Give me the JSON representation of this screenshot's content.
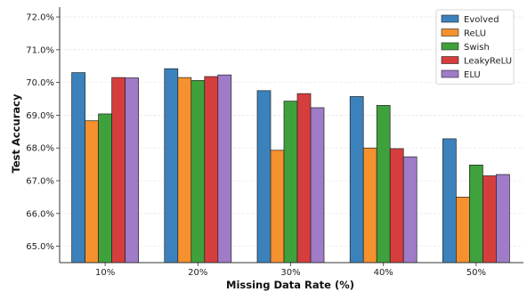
{
  "chart_data": {
    "type": "bar",
    "title": "",
    "xlabel": "Missing Data Rate (%)",
    "ylabel": "Test Accuracy",
    "categories": [
      "10%",
      "20%",
      "30%",
      "40%",
      "50%"
    ],
    "ylim": [
      64.5,
      72.3
    ],
    "yticks": [
      65.0,
      66.0,
      67.0,
      68.0,
      69.0,
      70.0,
      71.0,
      72.0
    ],
    "ytick_labels": [
      "65.0%",
      "66.0%",
      "67.0%",
      "68.0%",
      "69.0%",
      "70.0%",
      "71.0%",
      "72.0%"
    ],
    "grid": true,
    "legend_position": "top-right",
    "series": [
      {
        "name": "Evolved",
        "color": "#3b82bd",
        "values": [
          70.3,
          70.42,
          69.75,
          69.57,
          68.28
        ]
      },
      {
        "name": "ReLU",
        "color": "#f5912e",
        "values": [
          68.83,
          70.15,
          67.93,
          68.0,
          66.5
        ]
      },
      {
        "name": "Swish",
        "color": "#3fa13c",
        "values": [
          69.04,
          70.06,
          69.43,
          69.3,
          67.48
        ]
      },
      {
        "name": "LeakyReLU",
        "color": "#d63e3e",
        "values": [
          70.15,
          70.18,
          69.66,
          67.98,
          67.15
        ]
      },
      {
        "name": "ELU",
        "color": "#9f7bc8",
        "values": [
          70.14,
          70.23,
          69.23,
          67.73,
          67.19
        ]
      }
    ]
  }
}
